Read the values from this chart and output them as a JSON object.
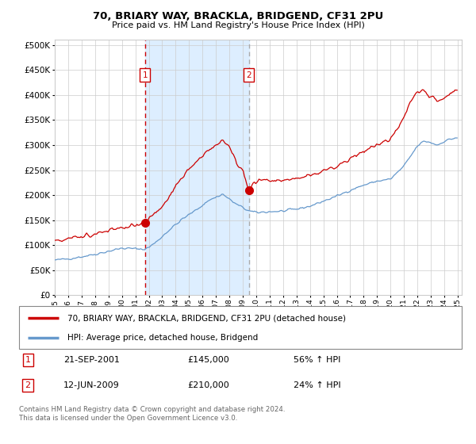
{
  "title": "70, BRIARY WAY, BRACKLA, BRIDGEND, CF31 2PU",
  "subtitle": "Price paid vs. HM Land Registry's House Price Index (HPI)",
  "sale1_label": "21-SEP-2001",
  "sale1_price": 145000,
  "sale1_price_str": "£145,000",
  "sale1_pct": "56% ↑ HPI",
  "sale1_year": 2001,
  "sale1_month": 9,
  "sale1_day": 21,
  "sale2_label": "12-JUN-2009",
  "sale2_price": 210000,
  "sale2_price_str": "£210,000",
  "sale2_pct": "24% ↑ HPI",
  "sale2_year": 2009,
  "sale2_month": 6,
  "sale2_day": 12,
  "legend1": "70, BRIARY WAY, BRACKLA, BRIDGEND, CF31 2PU (detached house)",
  "legend2": "HPI: Average price, detached house, Bridgend",
  "footnote": "Contains HM Land Registry data © Crown copyright and database right 2024.\nThis data is licensed under the Open Government Licence v3.0.",
  "hpi_color": "#6699cc",
  "property_color": "#cc0000",
  "shade_color": "#ddeeff",
  "plot_bg": "#ffffff",
  "grid_color": "#cccccc",
  "ylim": [
    0,
    510000
  ],
  "yticks": [
    0,
    50000,
    100000,
    150000,
    200000,
    250000,
    300000,
    350000,
    400000,
    450000,
    500000
  ],
  "xlim_start": 1995.0,
  "xlim_end": 2025.3
}
